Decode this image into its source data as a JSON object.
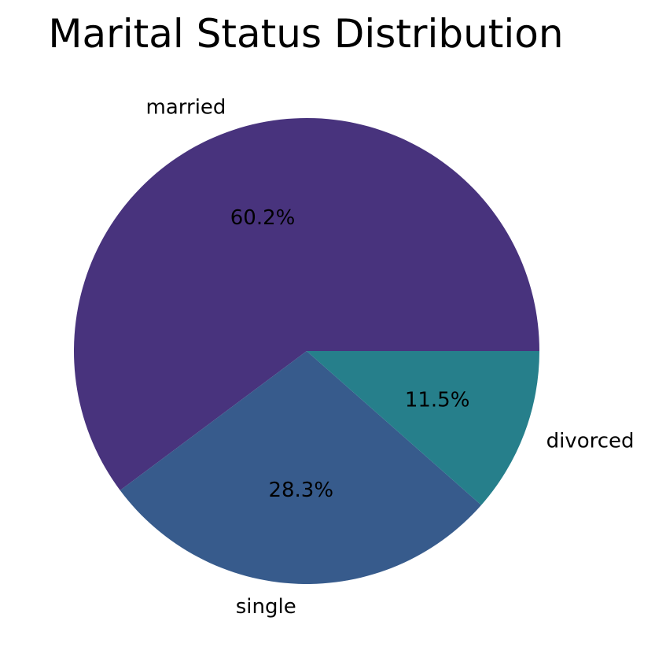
{
  "chart_data": {
    "type": "pie",
    "title": "Marital Status Distribution",
    "slices": [
      {
        "label": "married",
        "value": 60.2,
        "pct_label": "60.2%",
        "color": "#48337d"
      },
      {
        "label": "single",
        "value": 28.3,
        "pct_label": "28.3%",
        "color": "#375b8c"
      },
      {
        "label": "divorced",
        "value": 11.5,
        "pct_label": "11.5%",
        "color": "#267f8b"
      }
    ],
    "start_angle": "0° (3 o'clock), counter-clockwise",
    "legend": "none (labels on slices)"
  }
}
